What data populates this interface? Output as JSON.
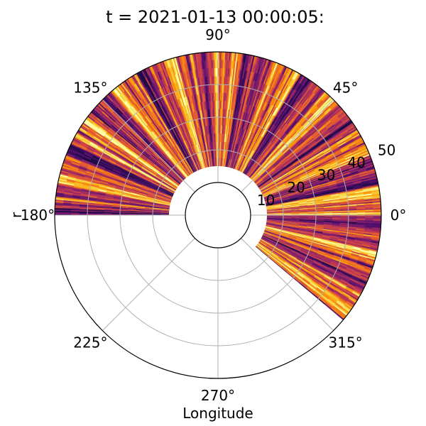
{
  "chart_data": {
    "type": "heatmap",
    "projection": "polar",
    "title": "t = 2021-01-13 00:00:05:",
    "xlabel": "Longitude",
    "ylabel": "r",
    "theta_ticks": [
      "0°",
      "45°",
      "90°",
      "135°",
      "180°",
      "225°",
      "270°",
      "315°"
    ],
    "theta_tick_degrees": [
      0,
      45,
      90,
      135,
      180,
      225,
      270,
      315
    ],
    "r_ticks": [
      "10",
      "20",
      "30",
      "40",
      "50"
    ],
    "r_tick_values": [
      10,
      20,
      30,
      40,
      50
    ],
    "rlim": [
      0,
      50
    ],
    "inner_radius": 10,
    "data_r_range": [
      15,
      50
    ],
    "data_theta_range_deg": [
      -40,
      180
    ],
    "colormap": "inferno",
    "grid": true
  },
  "colors": {
    "grid": "#b0b0b0",
    "spine": "#000000",
    "background": "#ffffff",
    "colormap_stops": [
      "#1c0c43",
      "#4b0c6b",
      "#781c6d",
      "#a52c60",
      "#cf4446",
      "#ed6925",
      "#fb9b06",
      "#f7d13d",
      "#fcffa4"
    ]
  }
}
